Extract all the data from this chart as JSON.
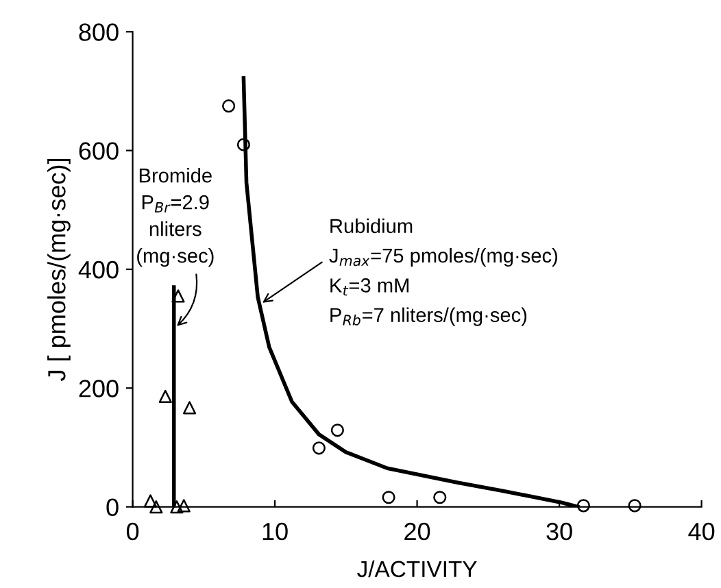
{
  "chart_data": {
    "type": "scatter",
    "xlabel": "J/ACTIVITY",
    "ylabel": "J [ pmoles/(mg·sec)]",
    "xlim": [
      0,
      40
    ],
    "ylim": [
      0,
      800
    ],
    "xticks": [
      0,
      10,
      20,
      30,
      40
    ],
    "yticks": [
      0,
      200,
      400,
      600,
      800
    ],
    "grid": false,
    "legend": false,
    "series": [
      {
        "marker": "circle",
        "color": "#000000",
        "x": [
          6.75,
          7.8,
          13.1,
          14.4,
          18.0,
          21.6,
          31.7,
          35.3
        ],
        "values": [
          675,
          610,
          99,
          129,
          16,
          16,
          2,
          2
        ]
      },
      {
        "marker": "triangle",
        "color": "#000000",
        "x": [
          1.25,
          1.65,
          2.3,
          3.1,
          3.2,
          3.6,
          4.0
        ],
        "values": [
          10,
          0,
          186,
          0,
          355,
          2,
          167
        ]
      },
      {
        "type": "line",
        "marker": "none",
        "line_style": "solid",
        "color": "#000000",
        "x": [
          2.9,
          2.9
        ],
        "values": [
          0,
          370
        ]
      },
      {
        "type": "line",
        "marker": "none",
        "line_style": "solid",
        "color": "#000000",
        "x": [
          7.8,
          8.0,
          8.8,
          9.6,
          11.2,
          13.1,
          15.0,
          17.9,
          22.8,
          26.0,
          30.2,
          31.3
        ],
        "values": [
          722,
          546,
          353,
          269,
          177,
          122,
          92,
          65,
          41,
          27,
          7,
          0
        ]
      }
    ],
    "annotations": [
      "Bromide",
      "P$_{Br}$=2.9",
      "nliters",
      {
        "text": "(mg·sec)",
        "x": 2.9,
        "y": 300
      },
      "Rubidium",
      {
        "text": "J$_{max}$=75 pmoles/(mg·sec)",
        "x": 8.9,
        "y": 340
      },
      "K$_{t}$=3 mM",
      "P$_{Rb}$=7 nliters/(mg·sec)"
    ]
  }
}
